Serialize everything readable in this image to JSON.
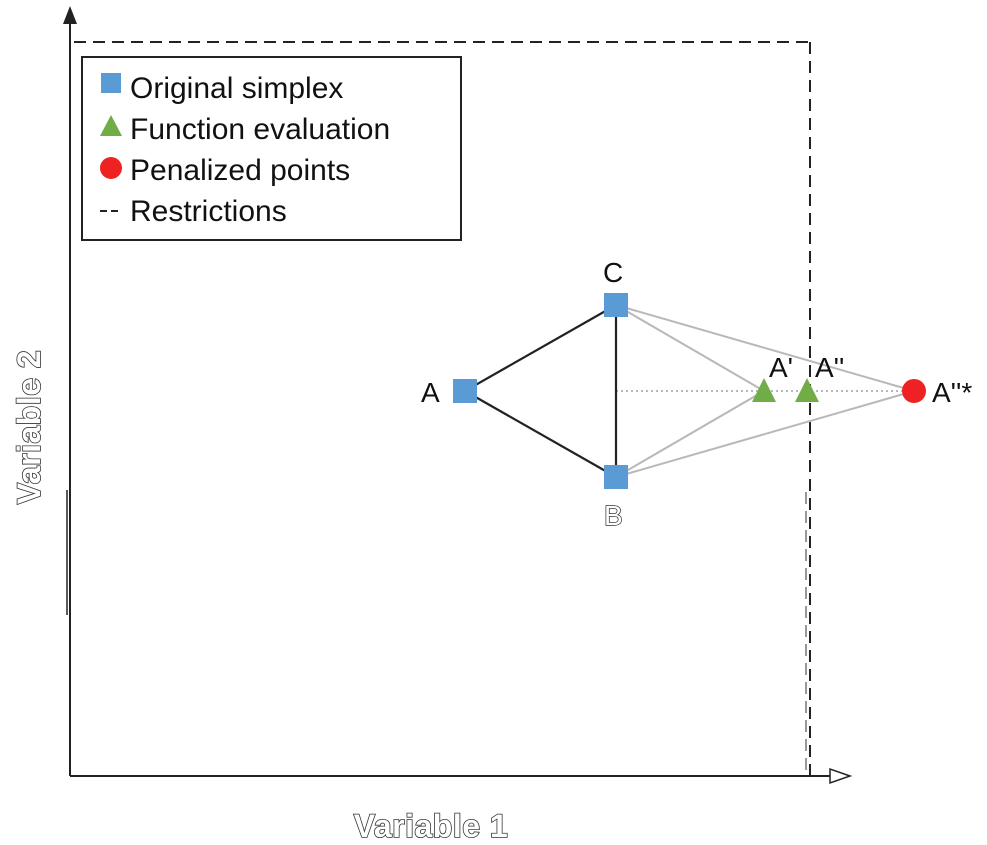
{
  "axes": {
    "x_label": "Variable 1",
    "y_label": "Variable 2"
  },
  "legend": {
    "items": [
      {
        "marker": "square",
        "color": "#5b9bd5",
        "label": "Original simplex"
      },
      {
        "marker": "triangle",
        "color": "#70ad47",
        "label": "Function evaluation"
      },
      {
        "marker": "circle",
        "color": "#ee2222",
        "label": "Penalized points"
      },
      {
        "marker": "dash",
        "color": "#111111",
        "label": "Restrictions"
      }
    ]
  },
  "points": {
    "A": {
      "label": "A"
    },
    "B": {
      "label": "B"
    },
    "C": {
      "label": "C"
    },
    "A1": {
      "label": "A'"
    },
    "A2": {
      "label": "A''"
    },
    "A3": {
      "label": "A''*"
    }
  },
  "colors": {
    "simplex": "#5b9bd5",
    "evaluation": "#70ad47",
    "penalized": "#ee2222",
    "simplex_edge": "#222222",
    "construction": "#b8b8b8"
  }
}
